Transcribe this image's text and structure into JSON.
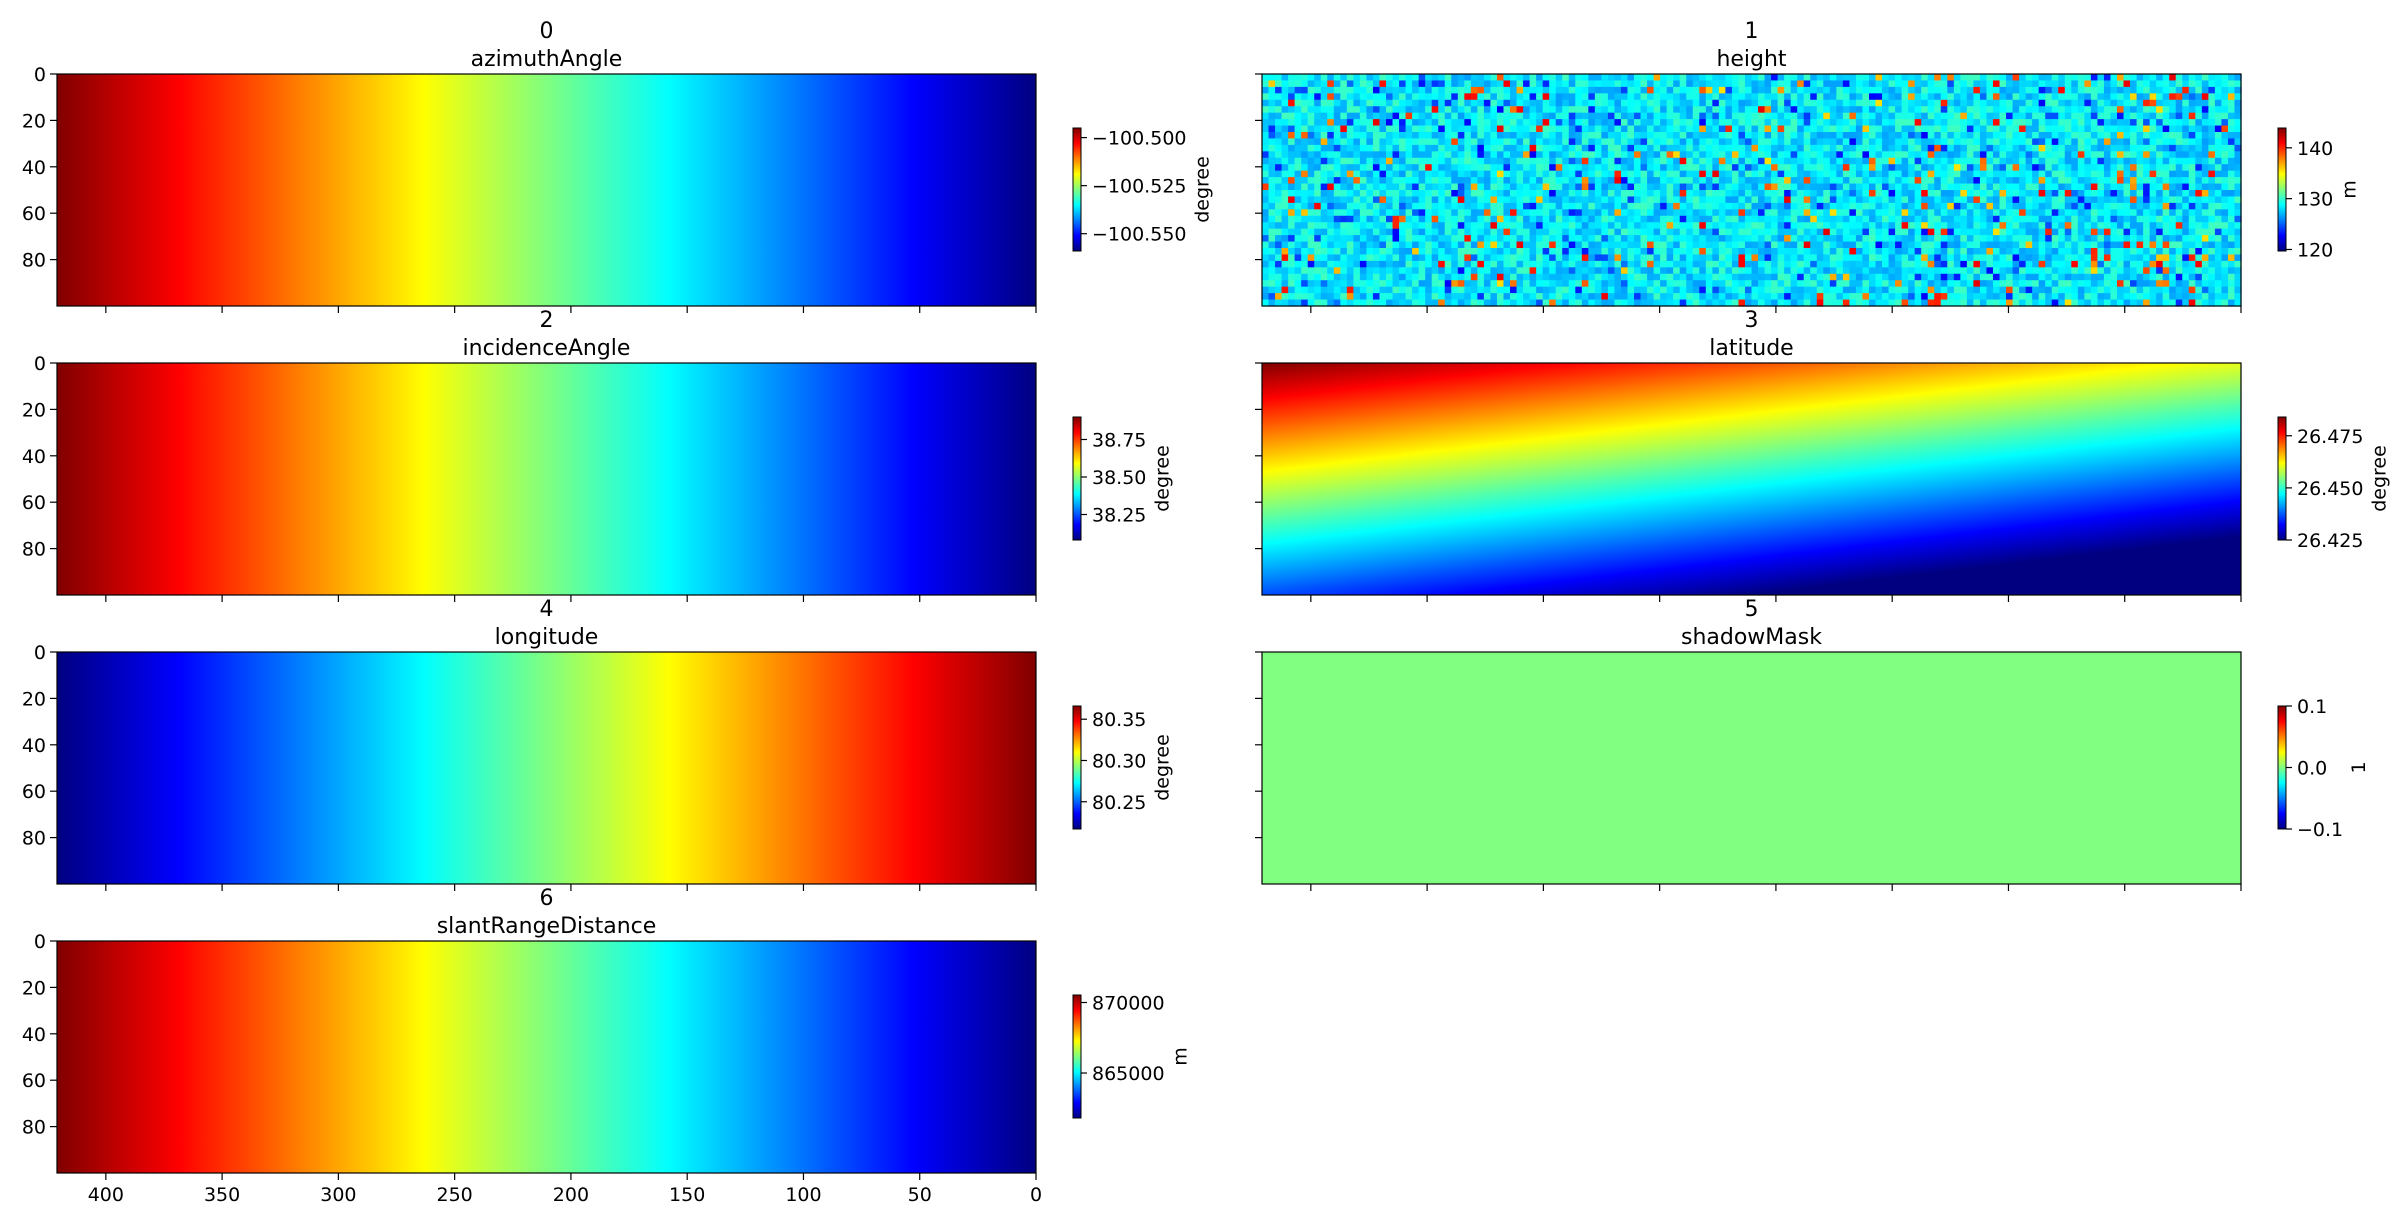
{
  "chart_data": [
    {
      "type": "image",
      "panel_label": "0",
      "title": "azimuthAngle",
      "colormap": "jet",
      "colorbar_label": "degree",
      "clim": [
        -100.559,
        -100.495
      ],
      "cticks": [
        {
          "value": -100.5,
          "label": "−100.500"
        },
        {
          "value": -100.525,
          "label": "−100.525"
        },
        {
          "value": -100.55,
          "label": "−100.550"
        }
      ],
      "xlim": [
        421,
        0
      ],
      "xticks": [
        400,
        350,
        300,
        250,
        200,
        150,
        100,
        50,
        0
      ],
      "show_xticklabels": false,
      "ylim": [
        100,
        0
      ],
      "yticks": [
        0,
        20,
        40,
        60,
        80
      ],
      "show_yticklabels": true
    },
    {
      "type": "image",
      "panel_label": "1",
      "title": "height",
      "colormap": "jet",
      "colorbar_label": "m",
      "clim": [
        119.7,
        143.9
      ],
      "cticks": [
        140,
        130,
        120
      ],
      "xlim": [
        421,
        0
      ],
      "xticks": [
        400,
        350,
        300,
        250,
        200,
        150,
        100,
        50,
        0
      ],
      "show_xticklabels": false,
      "ylim": [
        100,
        0
      ],
      "yticks": [
        0,
        20,
        40,
        60,
        80
      ],
      "show_yticklabels": false
    },
    {
      "type": "image",
      "panel_label": "2",
      "title": "incidenceAngle",
      "colormap": "jet",
      "colorbar_label": "degree",
      "clim": [
        38.08,
        38.9
      ],
      "cticks": [
        38.75,
        {
          "value": 38.5,
          "label": "38.50"
        },
        38.25
      ],
      "xlim": [
        421,
        0
      ],
      "xticks": [
        400,
        350,
        300,
        250,
        200,
        150,
        100,
        50,
        0
      ],
      "show_xticklabels": false,
      "ylim": [
        100,
        0
      ],
      "yticks": [
        0,
        20,
        40,
        60,
        80
      ],
      "show_yticklabels": true
    },
    {
      "type": "image",
      "panel_label": "3",
      "title": "latitude",
      "colormap": "jet",
      "colorbar_label": "degree",
      "clim": [
        26.425,
        26.484
      ],
      "cticks": [
        26.475,
        {
          "value": 26.45,
          "label": "26.450"
        },
        26.425
      ],
      "xlim": [
        421,
        0
      ],
      "xticks": [
        400,
        350,
        300,
        250,
        200,
        150,
        100,
        50,
        0
      ],
      "show_xticklabels": false,
      "ylim": [
        100,
        0
      ],
      "yticks": [
        0,
        20,
        40,
        60,
        80
      ],
      "show_yticklabels": false
    },
    {
      "type": "image",
      "panel_label": "4",
      "title": "longitude",
      "colormap": "jet",
      "colorbar_label": "degree",
      "clim": [
        80.217,
        80.366
      ],
      "cticks": [
        80.35,
        {
          "value": 80.3,
          "label": "80.30"
        },
        80.25
      ],
      "xlim": [
        421,
        0
      ],
      "xticks": [
        400,
        350,
        300,
        250,
        200,
        150,
        100,
        50,
        0
      ],
      "show_xticklabels": false,
      "ylim": [
        100,
        0
      ],
      "yticks": [
        0,
        20,
        40,
        60,
        80
      ],
      "show_yticklabels": true
    },
    {
      "type": "image",
      "panel_label": "5",
      "title": "shadowMask",
      "colormap": "jet",
      "colorbar_label": "1",
      "clim": [
        -0.1,
        0.1
      ],
      "cticks": [
        0.1,
        {
          "value": 0,
          "label": "0.0"
        },
        {
          "value": -0.1,
          "label": "−0.1"
        }
      ],
      "xlim": [
        421,
        0
      ],
      "xticks": [
        400,
        350,
        300,
        250,
        200,
        150,
        100,
        50,
        0
      ],
      "show_xticklabels": false,
      "ylim": [
        100,
        0
      ],
      "yticks": [
        0,
        20,
        40,
        60,
        80
      ],
      "show_yticklabels": false
    },
    {
      "type": "image",
      "panel_label": "6",
      "title": "slantRangeDistance",
      "colormap": "jet",
      "colorbar_label": "m",
      "clim": [
        861810,
        870532
      ],
      "cticks": [
        870000,
        865000
      ],
      "xlim": [
        421,
        0
      ],
      "xticks": [
        400,
        350,
        300,
        250,
        200,
        150,
        100,
        50,
        0
      ],
      "show_xticklabels": true,
      "ylim": [
        100,
        0
      ],
      "yticks": [
        0,
        20,
        40,
        60,
        80
      ],
      "show_yticklabels": true
    }
  ]
}
